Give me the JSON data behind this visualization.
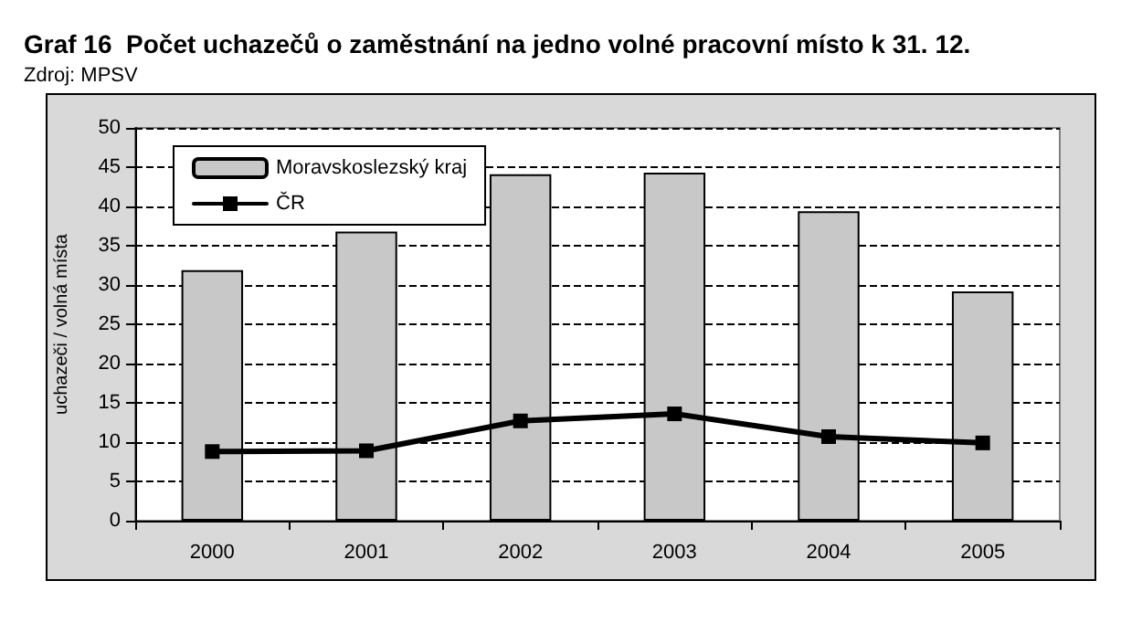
{
  "chart_data": {
    "type": "bar",
    "title": "Graf 16  Počet uchazečů o zaměstnání na jedno volné pracovní místo k 31. 12.",
    "subtitle": "Zdroj: MPSV",
    "ylabel": "uchazeči / volná místa",
    "categories": [
      "2000",
      "2001",
      "2002",
      "2003",
      "2004",
      "2005"
    ],
    "series": [
      {
        "name": "Moravskoslezský kraj",
        "color": "#c8c8c8",
        "values": [
          31.9,
          36.8,
          44.1,
          44.3,
          39.4,
          29.2
        ]
      },
      {
        "name": "ČR",
        "type": "line",
        "color": "#000000",
        "values": [
          8.8,
          8.9,
          12.7,
          13.6,
          10.7,
          9.9
        ]
      }
    ],
    "ylim": [
      0,
      50
    ],
    "yticks": [
      0,
      5,
      10,
      15,
      20,
      25,
      30,
      35,
      40,
      45,
      50
    ],
    "grid": "y",
    "legend": "top left",
    "marker": "square",
    "line_style": "solid"
  }
}
